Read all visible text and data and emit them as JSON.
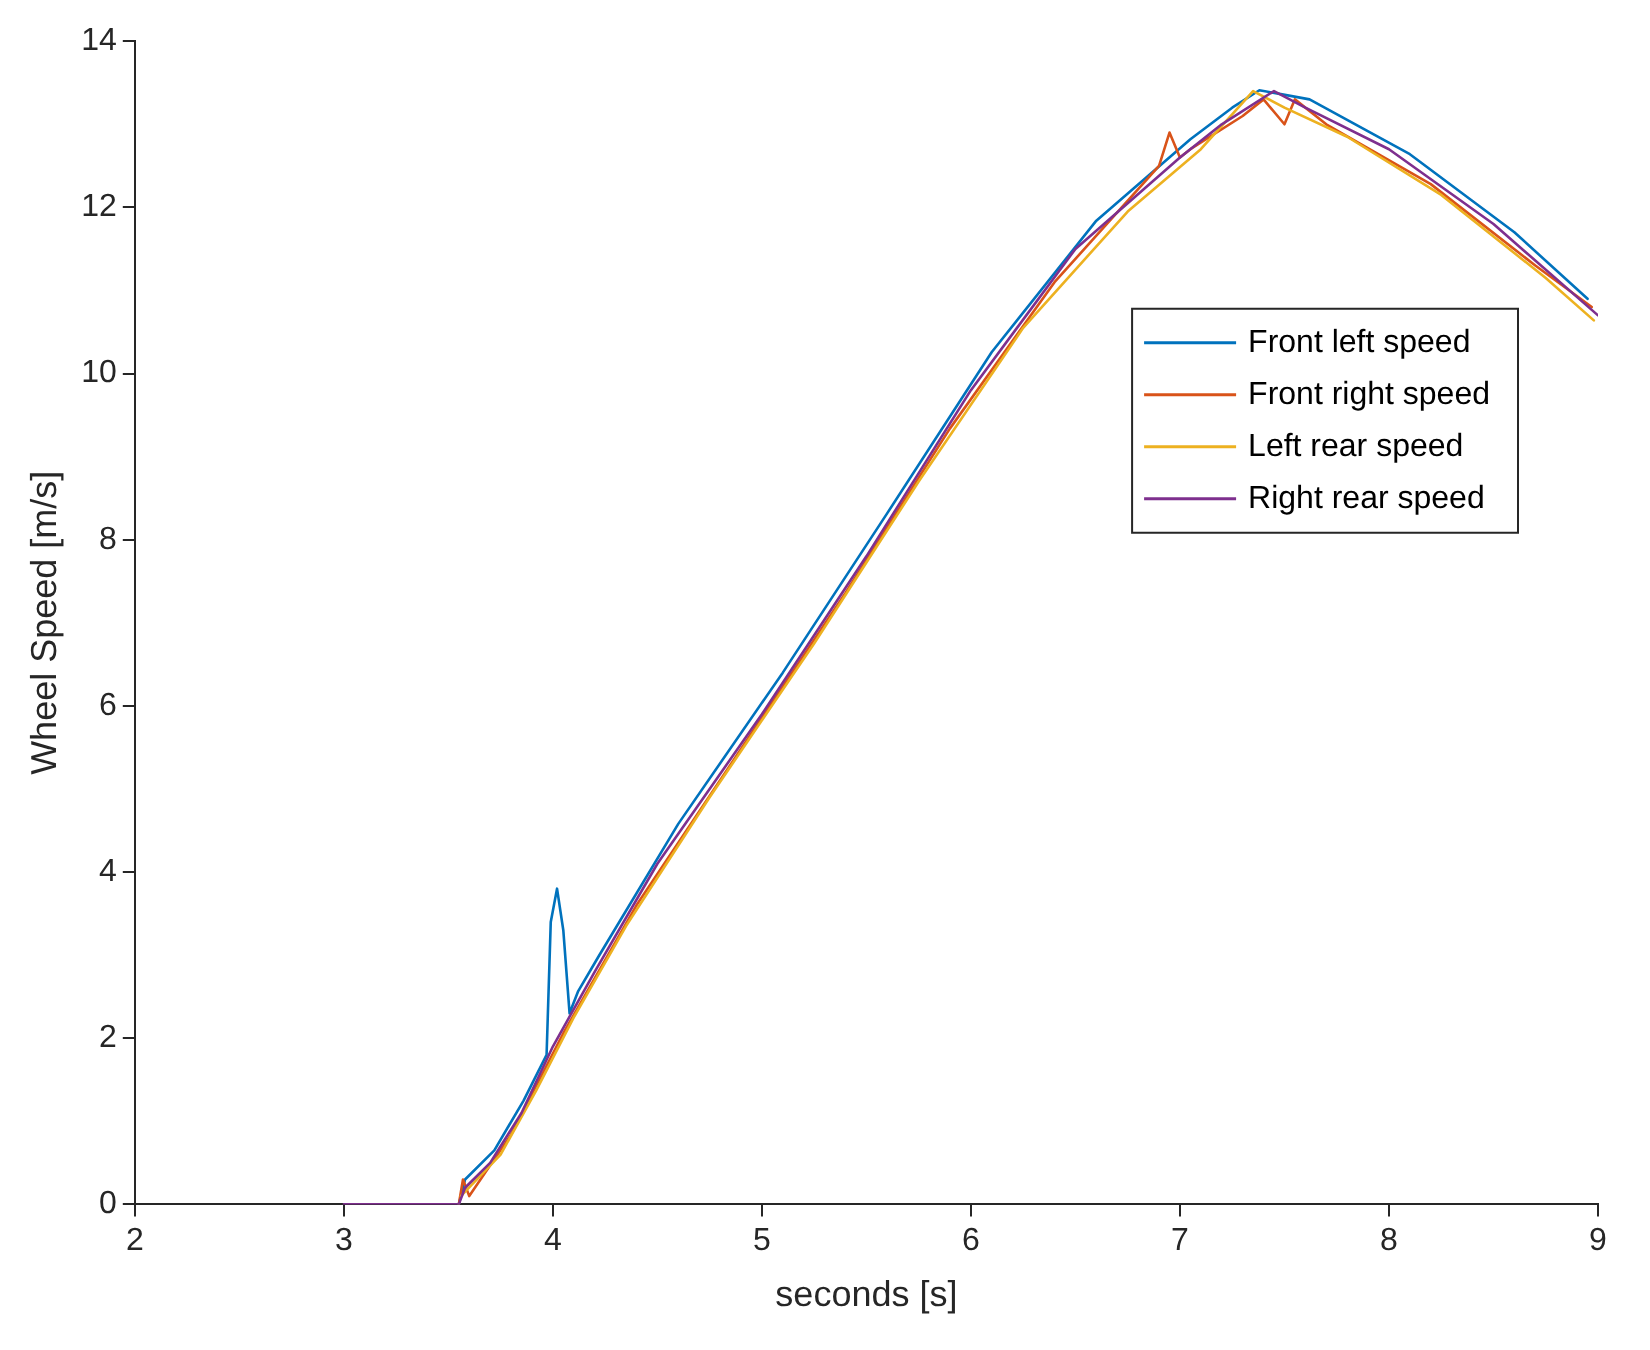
{
  "chart_data": {
    "type": "line",
    "xlabel": "seconds [s]",
    "ylabel": "Wheel Speed [m/s]",
    "xlim": [
      2,
      9
    ],
    "ylim": [
      0,
      14
    ],
    "xticks": [
      2,
      3,
      4,
      5,
      6,
      7,
      8,
      9
    ],
    "yticks": [
      0,
      2,
      4,
      6,
      8,
      10,
      12,
      14
    ],
    "grid": false,
    "legend": "right",
    "marker": "none",
    "line_style": "solid",
    "series": [
      {
        "name": "Front left speed",
        "color": "#0072bd",
        "x": [
          3.55,
          3.58,
          3.72,
          3.86,
          3.97,
          3.99,
          4.02,
          4.05,
          4.08,
          4.12,
          4.22,
          4.6,
          5.1,
          5.6,
          6.1,
          6.6,
          7.05,
          7.25,
          7.38,
          7.62,
          8.1,
          8.6,
          8.95
        ],
        "values": [
          0,
          0.3,
          0.65,
          1.25,
          1.8,
          3.4,
          3.8,
          3.3,
          2.3,
          2.56,
          2.99,
          4.58,
          6.4,
          8.32,
          10.26,
          11.84,
          12.82,
          13.2,
          13.41,
          13.3,
          12.64,
          11.7,
          10.9
        ]
      },
      {
        "name": "Front right speed",
        "color": "#d95319",
        "x": [
          3.55,
          3.57,
          3.6,
          3.8,
          4.05,
          4.4,
          4.9,
          5.4,
          5.9,
          6.4,
          6.9,
          6.95,
          7.0,
          7.05,
          7.3,
          7.4,
          7.5,
          7.55,
          7.7,
          8.2,
          8.7,
          8.97
        ],
        "values": [
          0,
          0.3,
          0.1,
          0.84,
          2.06,
          3.6,
          5.48,
          7.36,
          9.34,
          11.1,
          12.5,
          12.9,
          12.6,
          12.7,
          13.1,
          13.3,
          13.0,
          13.3,
          13.0,
          12.28,
          11.3,
          10.8
        ]
      },
      {
        "name": "Left rear speed",
        "color": "#edb120",
        "x": [
          3.56,
          3.75,
          3.92,
          4.1,
          4.35,
          4.75,
          5.25,
          5.75,
          6.25,
          6.75,
          7.1,
          7.35,
          7.5,
          7.8,
          8.25,
          8.75,
          8.98
        ],
        "values": [
          0.1,
          0.6,
          1.37,
          2.25,
          3.35,
          4.9,
          6.75,
          8.7,
          10.55,
          11.95,
          12.7,
          13.4,
          13.2,
          12.85,
          12.15,
          11.15,
          10.64
        ]
      },
      {
        "name": "Right rear speed",
        "color": "#7e2f8e",
        "x": [
          3.0,
          3.55,
          3.58,
          3.7,
          3.85,
          4.0,
          4.2,
          4.5,
          5.0,
          5.5,
          6.0,
          6.5,
          7.0,
          7.2,
          7.45,
          7.6,
          8.0,
          8.5,
          9.0
        ],
        "values": [
          0,
          0,
          0.2,
          0.5,
          1.1,
          1.9,
          2.8,
          4.1,
          5.9,
          7.8,
          9.8,
          11.5,
          12.6,
          13.0,
          13.4,
          13.2,
          12.7,
          11.8,
          10.7
        ]
      }
    ]
  }
}
